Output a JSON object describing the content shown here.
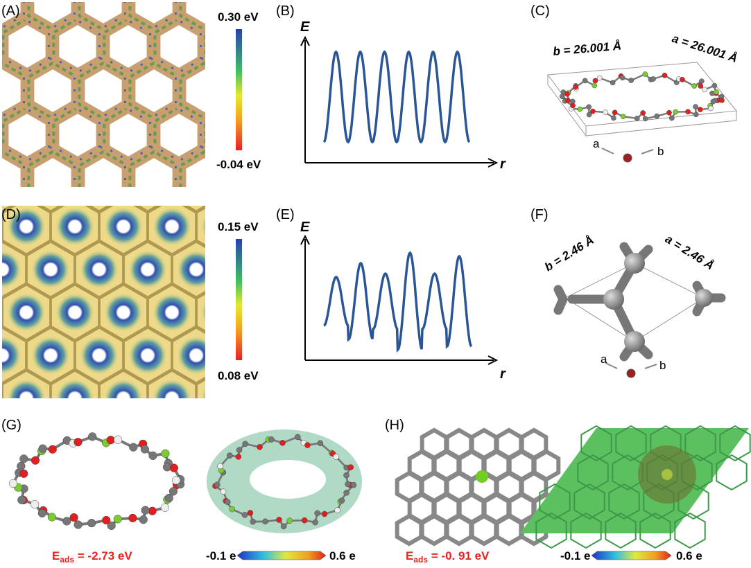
{
  "panels": {
    "A": {
      "label": "(A)",
      "scale_max": "0.30 eV",
      "scale_min": "-0.04 eV"
    },
    "B": {
      "label": "(B)",
      "y_axis": "E",
      "x_axis": "r"
    },
    "C": {
      "label": "(C)",
      "lattice_b": "b = 26.001 Å",
      "lattice_a": "a = 26.001 Å",
      "axis_a": "a",
      "axis_b": "b"
    },
    "D": {
      "label": "(D)",
      "scale_max": "0.15 eV",
      "scale_min": "0.08 eV"
    },
    "E": {
      "label": "(E)",
      "y_axis": "E",
      "x_axis": "r"
    },
    "F": {
      "label": "(F)",
      "lattice_b": "b = 2.46 Å",
      "lattice_a": "a = 2.46 Å",
      "axis_a": "a",
      "axis_b": "b"
    },
    "G": {
      "label": "(G)",
      "energy_symbol": "E",
      "energy_subscript": "ads",
      "energy_value": " = -2.73 eV",
      "scale_min": "-0.1 e",
      "scale_max": "0.6 e"
    },
    "H": {
      "label": "(H)",
      "energy_symbol": "E",
      "energy_subscript": "ads",
      "energy_value": " = -0. 91 eV",
      "scale_min": "-0.1 e",
      "scale_max": "0.6 e"
    }
  }
}
